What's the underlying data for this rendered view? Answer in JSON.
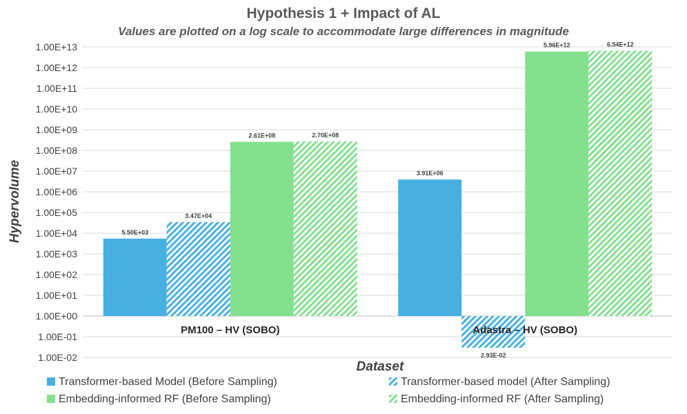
{
  "chart_data": {
    "type": "bar",
    "title": "Hypothesis 1 + Impact of AL",
    "subtitle": "Values are plotted on a log scale to accommodate large differences in magnitude",
    "xlabel": "Dataset",
    "ylabel": "Hypervolume",
    "yscale": "log",
    "ylim": [
      0.01,
      10000000000000.0
    ],
    "baseline": 1,
    "yticks": [
      0.01,
      0.1,
      1,
      10,
      100,
      1000.0,
      10000.0,
      100000.0,
      1000000.0,
      10000000.0,
      100000000.0,
      1000000000.0,
      10000000000.0,
      100000000000.0,
      1000000000000.0,
      10000000000000.0
    ],
    "ytick_labels": [
      "1.00E-02",
      "1.00E-01",
      "1.00E+00",
      "1.00E+01",
      "1.00E+02",
      "1.00E+03",
      "1.00E+04",
      "1.00E+05",
      "1.00E+06",
      "1.00E+07",
      "1.00E+08",
      "1.00E+09",
      "1.00E+10",
      "1.00E+11",
      "1.00E+12",
      "1.00E+13"
    ],
    "grid": true,
    "legend_position": "bottom",
    "categories": [
      "PM100 – HV (SOBO)",
      "Adastra – HV (SOBO)"
    ],
    "series": [
      {
        "name": "Transformer-based Model (Before Sampling)",
        "color": "#47b0e0",
        "pattern": "solid",
        "values": [
          5500,
          3910000
        ],
        "labels": [
          "5.50E+03",
          "3.91E+06"
        ]
      },
      {
        "name": "Transformer-based model (After Sampling)",
        "color": "#47b0e0",
        "pattern": "hatch",
        "values": [
          34700,
          0.0293
        ],
        "labels": [
          "3.47E+04",
          "2.93E-02"
        ]
      },
      {
        "name": "Embedding-informed RF (Before Sampling)",
        "color": "#84e08f",
        "pattern": "solid",
        "values": [
          261000000,
          5960000000000
        ],
        "labels": [
          "2.61E+08",
          "5.96E+12"
        ]
      },
      {
        "name": "Embedding-informed RF (After Sampling)",
        "color": "#84e08f",
        "pattern": "hatch",
        "values": [
          270000000,
          6540000000000
        ],
        "labels": [
          "2.70E+08",
          "6.54E+12"
        ]
      }
    ]
  }
}
